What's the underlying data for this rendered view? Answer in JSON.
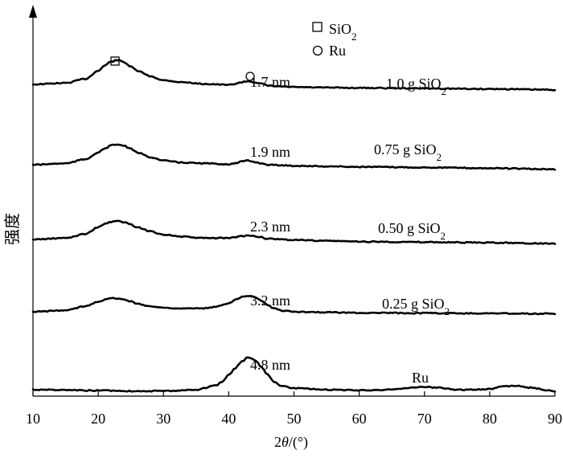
{
  "chart_data": {
    "type": "line",
    "xlabel": "2θ/(°)",
    "ylabel": "强度",
    "xlim": [
      10,
      90
    ],
    "xticks": [
      10,
      20,
      30,
      40,
      50,
      60,
      70,
      80,
      90
    ],
    "yticks_shown": false,
    "legend": {
      "placement": "top-center",
      "entries": [
        {
          "marker": "square",
          "label": "SiO",
          "sub": "2"
        },
        {
          "marker": "circle",
          "label": "Ru",
          "sub": ""
        }
      ]
    },
    "series": [
      {
        "name": "1.0 g SiO2",
        "label_main": "1.0 g SiO",
        "label_sub": "2",
        "size_label": "1.7 nm",
        "x": [
          10,
          15,
          18,
          20,
          21,
          22,
          23,
          24,
          25,
          26,
          28,
          30,
          33,
          36,
          40,
          41,
          42,
          43,
          44,
          45,
          46,
          48,
          50,
          55,
          60,
          70,
          80,
          90
        ],
        "y": [
          0.0,
          0.05,
          0.2,
          0.5,
          0.7,
          0.85,
          0.9,
          0.82,
          0.65,
          0.5,
          0.3,
          0.15,
          0.08,
          0.02,
          -0.02,
          0.02,
          0.08,
          0.12,
          0.08,
          0.02,
          -0.05,
          -0.08,
          -0.1,
          -0.12,
          -0.13,
          -0.15,
          -0.17,
          -0.2
        ]
      },
      {
        "name": "0.75 g SiO2",
        "label_main": "0.75 g SiO",
        "label_sub": "2",
        "size_label": "1.9 nm",
        "x": [
          10,
          15,
          18,
          20,
          21,
          22,
          23,
          24,
          25,
          26,
          28,
          30,
          33,
          36,
          40,
          41,
          42,
          43,
          44,
          45,
          46,
          48,
          50,
          55,
          60,
          70,
          80,
          90
        ],
        "y": [
          0.0,
          0.05,
          0.2,
          0.45,
          0.6,
          0.72,
          0.75,
          0.7,
          0.58,
          0.45,
          0.28,
          0.15,
          0.08,
          0.05,
          0.02,
          0.05,
          0.12,
          0.15,
          0.1,
          0.05,
          0.0,
          -0.02,
          -0.04,
          -0.06,
          -0.08,
          -0.1,
          -0.13,
          -0.17
        ]
      },
      {
        "name": "0.50 g SiO2",
        "label_main": "0.50 g SiO",
        "label_sub": "2",
        "size_label": "2.3 nm",
        "x": [
          10,
          15,
          18,
          20,
          21,
          22,
          23,
          24,
          25,
          26,
          28,
          30,
          33,
          36,
          40,
          41,
          42,
          43,
          44,
          45,
          46,
          48,
          50,
          55,
          60,
          70,
          80,
          90
        ],
        "y": [
          0.0,
          0.05,
          0.2,
          0.45,
          0.58,
          0.65,
          0.68,
          0.64,
          0.55,
          0.45,
          0.3,
          0.18,
          0.1,
          0.05,
          0.05,
          0.08,
          0.12,
          0.15,
          0.12,
          0.08,
          0.02,
          0.0,
          -0.02,
          -0.05,
          -0.08,
          -0.1,
          -0.12,
          -0.15
        ]
      },
      {
        "name": "0.25 g SiO2",
        "label_main": "0.25 g SiO",
        "label_sub": "2",
        "size_label": "3.2 nm",
        "x": [
          10,
          15,
          18,
          20,
          21,
          22,
          23,
          24,
          25,
          26,
          28,
          30,
          33,
          36,
          38,
          40,
          41,
          42,
          43,
          44,
          45,
          46,
          47,
          48,
          50,
          55,
          60,
          70,
          80,
          90
        ],
        "y": [
          0.0,
          0.05,
          0.2,
          0.38,
          0.45,
          0.5,
          0.5,
          0.45,
          0.38,
          0.3,
          0.2,
          0.15,
          0.12,
          0.12,
          0.18,
          0.32,
          0.45,
          0.55,
          0.6,
          0.55,
          0.4,
          0.25,
          0.12,
          0.05,
          0.0,
          -0.02,
          -0.04,
          -0.05,
          -0.06,
          -0.07
        ]
      },
      {
        "name": "Ru",
        "label_main": "Ru",
        "label_sub": "",
        "size_label": "4.8 nm",
        "x": [
          10,
          20,
          25,
          30,
          35,
          38,
          39,
          40,
          41,
          42,
          43,
          44,
          45,
          46,
          47,
          48,
          50,
          55,
          60,
          65,
          68,
          70,
          72,
          75,
          80,
          82,
          84,
          86,
          90
        ],
        "y": [
          0.0,
          -0.03,
          -0.05,
          -0.05,
          0.0,
          0.15,
          0.3,
          0.55,
          0.8,
          1.05,
          1.2,
          1.1,
          0.85,
          0.55,
          0.3,
          0.15,
          0.05,
          0.0,
          -0.02,
          0.0,
          0.08,
          0.1,
          0.08,
          0.0,
          0.02,
          0.12,
          0.15,
          0.08,
          -0.05
        ]
      }
    ]
  }
}
